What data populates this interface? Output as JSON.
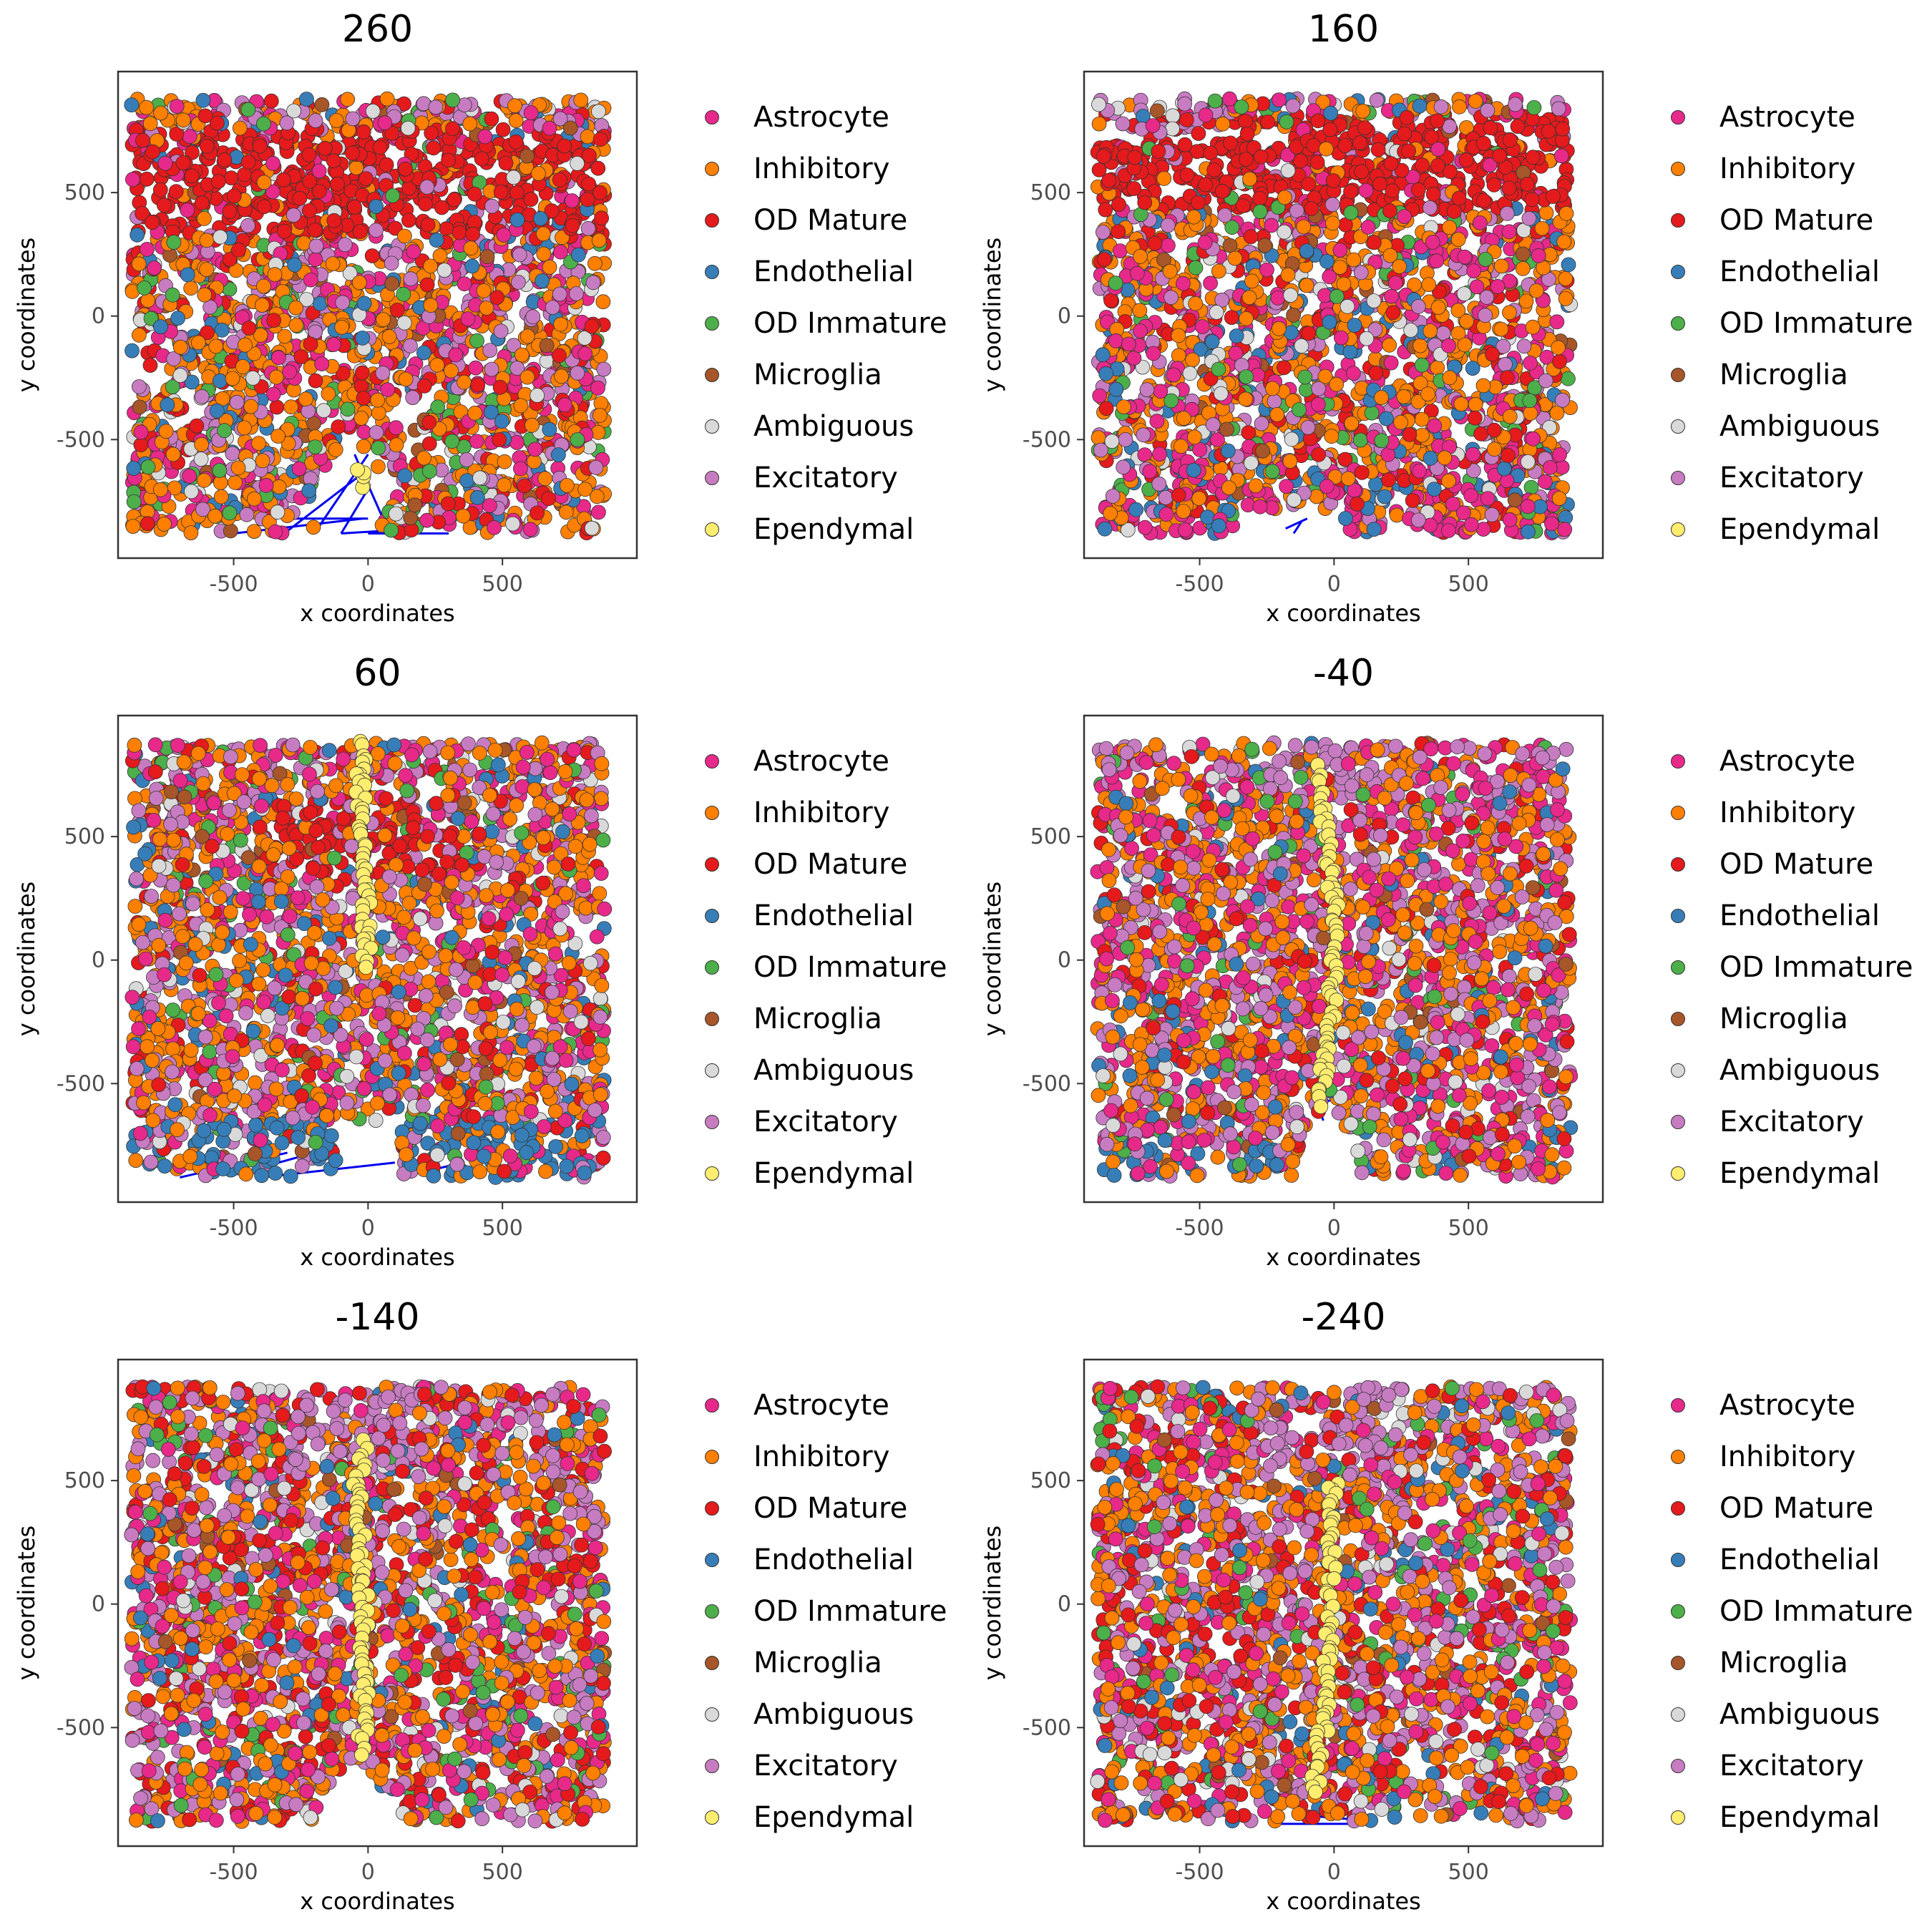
{
  "chart_data": [
    {
      "type": "scatter",
      "title": "260",
      "xlabel": "x coordinates",
      "ylabel": "y coordinates",
      "xlim": [
        -930,
        1000
      ],
      "ylim": [
        -980,
        990
      ],
      "xticks": [
        -500,
        0,
        500
      ],
      "yticks": [
        -500,
        0,
        500
      ],
      "pattern": "OD Mature band across top (y 300-750); mixed cell types elsewhere; blue connector lines near bottom center",
      "grid": false,
      "legend_position": "right"
    },
    {
      "type": "scatter",
      "title": "160",
      "xlabel": "x coordinates",
      "ylabel": "y coordinates",
      "xlim": [
        -930,
        1000
      ],
      "ylim": [
        -980,
        990
      ],
      "xticks": [
        -500,
        0,
        500
      ],
      "yticks": [
        -500,
        0,
        500
      ],
      "pattern": "OD Mature band across top (y 400-800); notch at bottom center around x -150",
      "grid": false,
      "legend_position": "right"
    },
    {
      "type": "scatter",
      "title": "60",
      "xlabel": "x coordinates",
      "ylabel": "y coordinates",
      "xlim": [
        -930,
        1000
      ],
      "ylim": [
        -980,
        990
      ],
      "xticks": [
        -500,
        0,
        500
      ],
      "yticks": [
        -500,
        0,
        500
      ],
      "pattern": "OD Mature cluster near top center; Ependymal cells near top center and center; Endothelial clusters along bottom",
      "grid": false,
      "legend_position": "right"
    },
    {
      "type": "scatter",
      "title": "-40",
      "xlabel": "x coordinates",
      "ylabel": "y coordinates",
      "xlim": [
        -930,
        1000
      ],
      "ylim": [
        -980,
        990
      ],
      "xticks": [
        -500,
        0,
        500
      ],
      "yticks": [
        -500,
        0,
        500
      ],
      "pattern": "vertical Ependymal line near x 0 from y 750 to -600; Endothelial along bottom left",
      "grid": false,
      "legend_position": "right"
    },
    {
      "type": "scatter",
      "title": "-140",
      "xlabel": "x coordinates",
      "ylabel": "y coordinates",
      "xlim": [
        -930,
        1000
      ],
      "ylim": [
        -980,
        990
      ],
      "xticks": [
        -500,
        0,
        500
      ],
      "yticks": [
        -500,
        0,
        500
      ],
      "pattern": "vertical Ependymal line near x -30 from y 650 to -600; Excitatory cluster near top center",
      "grid": false,
      "legend_position": "right"
    },
    {
      "type": "scatter",
      "title": "-240",
      "xlabel": "x coordinates",
      "ylabel": "y coordinates",
      "xlim": [
        -930,
        1000
      ],
      "ylim": [
        -980,
        990
      ],
      "xticks": [
        -500,
        0,
        500
      ],
      "yticks": [
        -500,
        0,
        500
      ],
      "pattern": "vertical Ependymal line near x 0 from y 500 to -750; Excitatory cluster near top center; blue connector lines at bottom",
      "grid": false,
      "legend_position": "right"
    }
  ],
  "legend": [
    {
      "label": "Astrocyte",
      "color": "#E7298A"
    },
    {
      "label": "Inhibitory",
      "color": "#FF7F00"
    },
    {
      "label": "OD Mature",
      "color": "#E41A1C"
    },
    {
      "label": "Endothelial",
      "color": "#377EB8"
    },
    {
      "label": "OD Immature",
      "color": "#4DAF4A"
    },
    {
      "label": "Microglia",
      "color": "#A65628"
    },
    {
      "label": "Ambiguous",
      "color": "#D9D9D9"
    },
    {
      "label": "Excitatory",
      "color": "#C77CC1"
    },
    {
      "label": "Ependymal",
      "color": "#FFED6F"
    }
  ],
  "edge_color": "#0000EE"
}
